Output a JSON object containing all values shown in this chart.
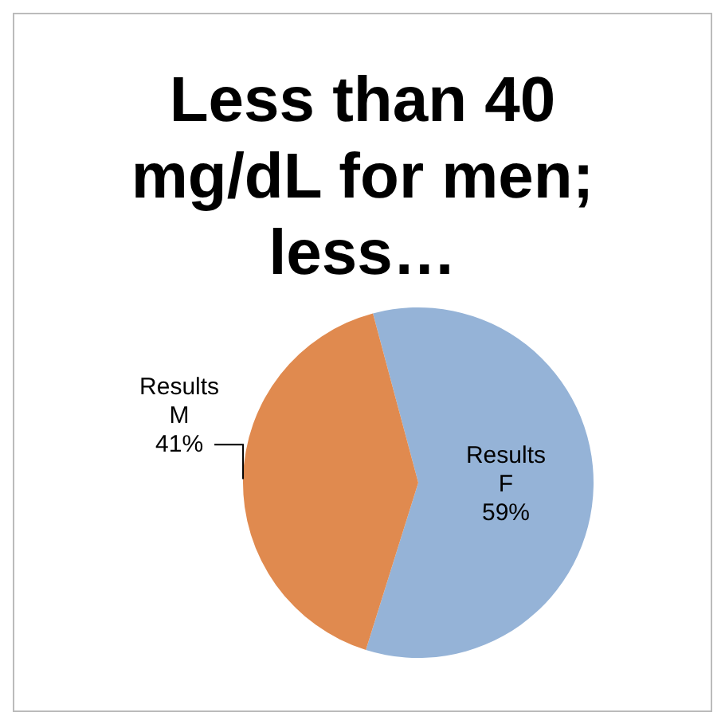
{
  "chart_data": {
    "type": "pie",
    "title": "Less than 40 mg/dL for men; less…",
    "categories": [
      "Results F",
      "Results M"
    ],
    "values": [
      59,
      41
    ],
    "colors": [
      "#95b3d7",
      "#e08a4f"
    ],
    "value_labels": [
      "59%",
      "41%"
    ],
    "legend": false
  }
}
